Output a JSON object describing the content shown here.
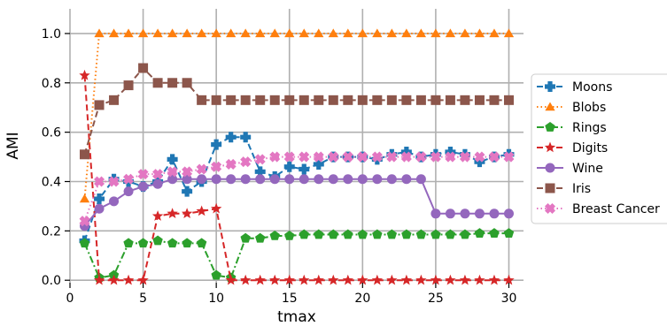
{
  "chart_data": {
    "type": "line",
    "xlabel": "tmax",
    "ylabel": "AMI",
    "xlim": [
      0,
      31
    ],
    "ylim": [
      -0.01,
      1.1
    ],
    "xticks": [
      0,
      5,
      10,
      15,
      20,
      25,
      30
    ],
    "yticks": [
      0.0,
      0.2,
      0.4,
      0.6,
      0.8,
      1.0
    ],
    "grid": true,
    "legend_position": "right",
    "x": [
      1,
      2,
      3,
      4,
      5,
      6,
      7,
      8,
      9,
      10,
      11,
      12,
      13,
      14,
      15,
      16,
      17,
      18,
      19,
      20,
      21,
      22,
      23,
      24,
      25,
      26,
      27,
      28,
      29,
      30
    ],
    "series": [
      {
        "name": "Moons",
        "color": "#1f77b4",
        "linestyle": "dashed",
        "marker": "plus",
        "values": [
          0.16,
          0.33,
          0.41,
          0.4,
          0.38,
          0.4,
          0.49,
          0.36,
          0.4,
          0.55,
          0.58,
          0.58,
          0.44,
          0.42,
          0.46,
          0.45,
          0.47,
          0.5,
          0.5,
          0.5,
          0.49,
          0.51,
          0.52,
          0.5,
          0.51,
          0.52,
          0.51,
          0.48,
          0.5,
          0.51
        ]
      },
      {
        "name": "Blobs",
        "color": "#ff7f0e",
        "linestyle": "dotted",
        "marker": "triangle",
        "values": [
          0.33,
          1.0,
          1.0,
          1.0,
          1.0,
          1.0,
          1.0,
          1.0,
          1.0,
          1.0,
          1.0,
          1.0,
          1.0,
          1.0,
          1.0,
          1.0,
          1.0,
          1.0,
          1.0,
          1.0,
          1.0,
          1.0,
          1.0,
          1.0,
          1.0,
          1.0,
          1.0,
          1.0,
          1.0,
          1.0
        ]
      },
      {
        "name": "Rings",
        "color": "#2ca02c",
        "linestyle": "dashdot",
        "marker": "pentagon",
        "values": [
          0.15,
          0.01,
          0.02,
          0.15,
          0.15,
          0.16,
          0.15,
          0.15,
          0.15,
          0.02,
          0.01,
          0.17,
          0.17,
          0.18,
          0.18,
          0.185,
          0.185,
          0.185,
          0.185,
          0.185,
          0.185,
          0.185,
          0.185,
          0.185,
          0.185,
          0.185,
          0.185,
          0.19,
          0.19,
          0.19
        ]
      },
      {
        "name": "Digits",
        "color": "#d62728",
        "linestyle": "dashed",
        "marker": "star",
        "values": [
          0.83,
          0.0,
          0.0,
          0.0,
          0.0,
          0.26,
          0.27,
          0.27,
          0.28,
          0.29,
          0.0,
          0.0,
          0.0,
          0.0,
          0.0,
          0.0,
          0.0,
          0.0,
          0.0,
          0.0,
          0.0,
          0.0,
          0.0,
          0.0,
          0.0,
          0.0,
          0.0,
          0.0,
          0.0,
          0.0
        ]
      },
      {
        "name": "Wine",
        "color": "#9467bd",
        "linestyle": "solid",
        "marker": "circle",
        "values": [
          0.22,
          0.29,
          0.32,
          0.36,
          0.38,
          0.39,
          0.41,
          0.41,
          0.41,
          0.41,
          0.41,
          0.41,
          0.41,
          0.41,
          0.41,
          0.41,
          0.41,
          0.41,
          0.41,
          0.41,
          0.41,
          0.41,
          0.41,
          0.41,
          0.27,
          0.27,
          0.27,
          0.27,
          0.27,
          0.27
        ]
      },
      {
        "name": "Iris",
        "color": "#8c564b",
        "linestyle": "dashed",
        "marker": "square",
        "values": [
          0.51,
          0.71,
          0.73,
          0.79,
          0.86,
          0.8,
          0.8,
          0.8,
          0.73,
          0.73,
          0.73,
          0.73,
          0.73,
          0.73,
          0.73,
          0.73,
          0.73,
          0.73,
          0.73,
          0.73,
          0.73,
          0.73,
          0.73,
          0.73,
          0.73,
          0.73,
          0.73,
          0.73,
          0.73,
          0.73
        ]
      },
      {
        "name": "Breast Cancer",
        "color": "#e377c2",
        "linestyle": "dotted",
        "marker": "x",
        "values": [
          0.24,
          0.4,
          0.4,
          0.41,
          0.43,
          0.43,
          0.44,
          0.44,
          0.45,
          0.46,
          0.47,
          0.48,
          0.49,
          0.5,
          0.5,
          0.5,
          0.5,
          0.5,
          0.5,
          0.5,
          0.5,
          0.5,
          0.5,
          0.5,
          0.5,
          0.5,
          0.5,
          0.5,
          0.5,
          0.5
        ]
      }
    ]
  }
}
